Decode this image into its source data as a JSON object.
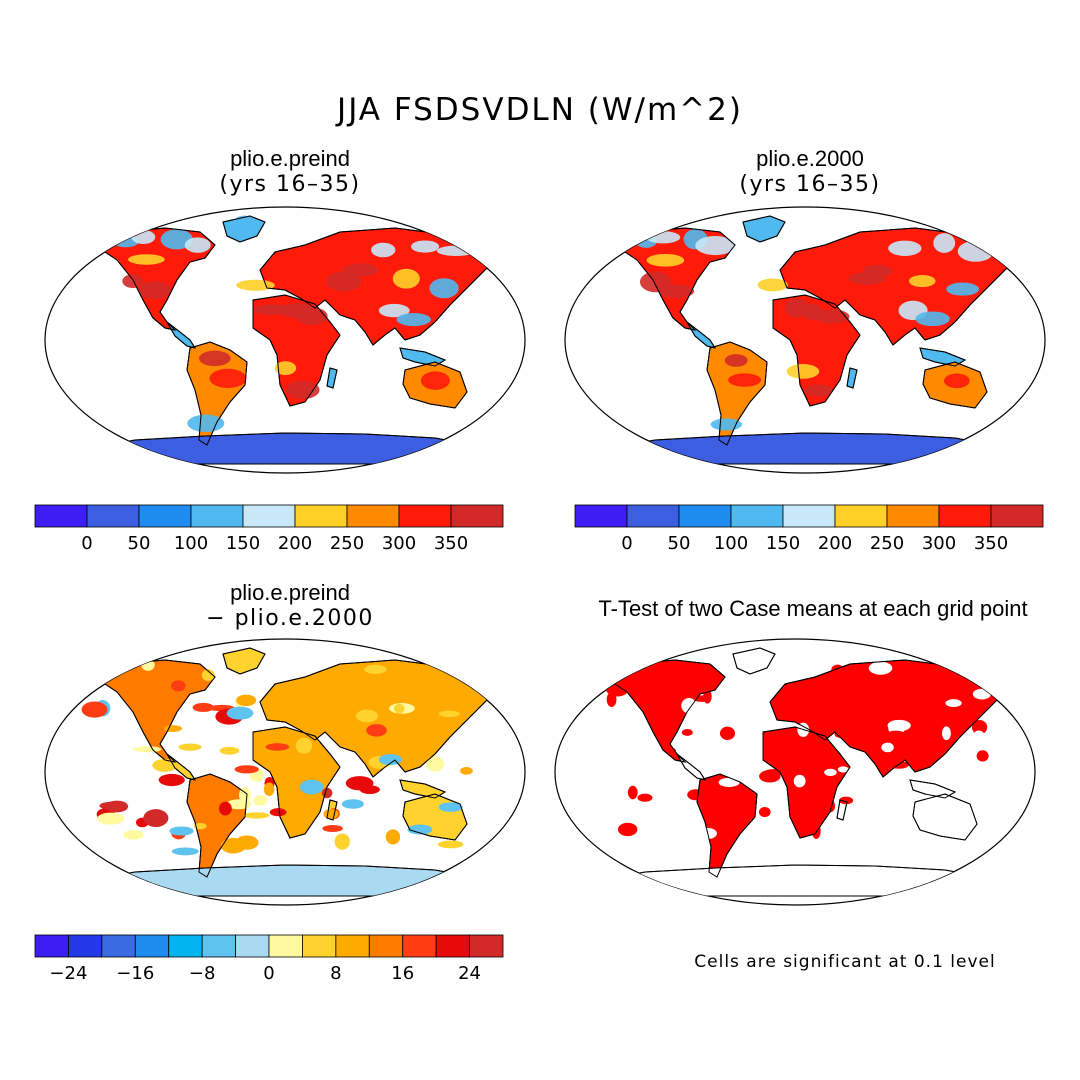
{
  "title": "JJA FSDSVDLN (W/m^2)",
  "panels": [
    {
      "id": "p1",
      "title": "plio.e.preind",
      "subtitle": "(yrs 16–35)",
      "kind": "abs"
    },
    {
      "id": "p2",
      "title": "plio.e.2000",
      "subtitle": "(yrs 16–35)",
      "kind": "abs"
    },
    {
      "id": "p3",
      "title": "plio.e.preind",
      "subtitle": "− plio.e.2000",
      "kind": "diff"
    },
    {
      "id": "p4",
      "title": "T-Test of two Case means at each grid point",
      "subtitle": "",
      "kind": "ttest"
    }
  ],
  "colorbars": {
    "abs": {
      "colors": [
        "#3c1ef5",
        "#3d5ee0",
        "#1e8cf0",
        "#50b9f0",
        "#c8e8f8",
        "#fed028",
        "#ff8a00",
        "#ff1a0a",
        "#d22a28"
      ],
      "labels": [
        "0",
        "50",
        "100",
        "150",
        "200",
        "250",
        "300",
        "350"
      ]
    },
    "diff": {
      "colors": [
        "#3c1ef5",
        "#2338e6",
        "#3a6ae4",
        "#1e8cf0",
        "#00b4f0",
        "#5fc3f0",
        "#a9daf2",
        "#fffaa0",
        "#ffd22d",
        "#ffaa00",
        "#ff7b00",
        "#ff3c14",
        "#e60a0a",
        "#d22a28"
      ],
      "labels": [
        "−24",
        "−16",
        "−8",
        "0",
        "8",
        "16",
        "24"
      ]
    }
  },
  "ttest_note": "Cells are significant at 0.1 level",
  "colors": {
    "ocean": "#ffffff",
    "antarctica_abs": "#3d5ee0",
    "antarctica_diff": "#a9daf2",
    "significant": "#ff0000"
  }
}
